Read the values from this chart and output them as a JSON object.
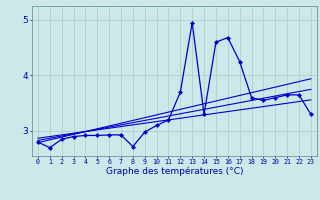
{
  "xlabel": "Graphe des températures (°C)",
  "x": [
    0,
    1,
    2,
    3,
    4,
    5,
    6,
    7,
    8,
    9,
    10,
    11,
    12,
    13,
    14,
    15,
    16,
    17,
    18,
    19,
    20,
    21,
    22,
    23
  ],
  "temp_main": [
    2.8,
    2.7,
    2.85,
    2.9,
    2.92,
    2.92,
    2.93,
    2.93,
    2.72,
    2.98,
    3.1,
    3.2,
    3.7,
    4.95,
    3.3,
    4.6,
    4.68,
    4.25,
    3.6,
    3.55,
    3.6,
    3.65,
    3.65,
    3.3
  ],
  "trend1": [
    2.87,
    2.9,
    2.93,
    2.96,
    2.99,
    3.02,
    3.05,
    3.08,
    3.11,
    3.14,
    3.17,
    3.2,
    3.23,
    3.26,
    3.29,
    3.32,
    3.35,
    3.38,
    3.41,
    3.44,
    3.47,
    3.5,
    3.53,
    3.56
  ],
  "trend2": [
    2.83,
    2.87,
    2.91,
    2.95,
    2.99,
    3.03,
    3.07,
    3.11,
    3.15,
    3.19,
    3.23,
    3.27,
    3.31,
    3.35,
    3.39,
    3.43,
    3.47,
    3.51,
    3.55,
    3.59,
    3.63,
    3.67,
    3.71,
    3.75
  ],
  "trend3": [
    2.79,
    2.84,
    2.89,
    2.94,
    2.99,
    3.04,
    3.09,
    3.14,
    3.19,
    3.24,
    3.29,
    3.34,
    3.39,
    3.44,
    3.49,
    3.54,
    3.59,
    3.64,
    3.69,
    3.74,
    3.79,
    3.84,
    3.89,
    3.94
  ],
  "bg_color": "#cce8e8",
  "line_color": "#0000cc",
  "grid_color": "#aacccc",
  "text_color": "#0000aa",
  "yticks": [
    3,
    4,
    5
  ],
  "ylim": [
    2.55,
    5.25
  ],
  "xlim": [
    -0.5,
    23.5
  ]
}
